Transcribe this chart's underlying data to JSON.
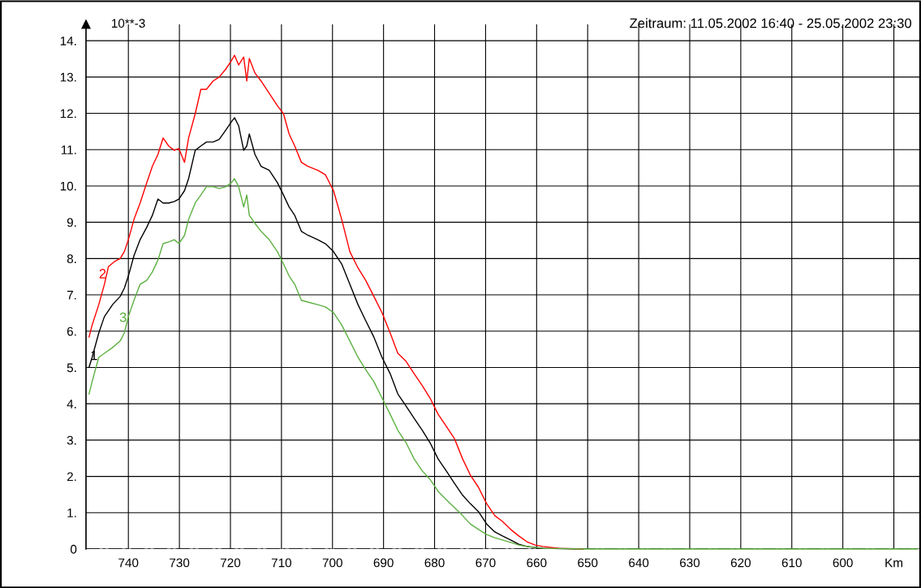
{
  "chart_data": {
    "type": "line",
    "title": "Zeitraum: 11.05.2002 16:40 - 25.05.2002 23:30",
    "ylabel": "10**-3",
    "xlim": [
      748.3,
      585.0
    ],
    "ylim": [
      0,
      14.45
    ],
    "xticks": [
      740,
      730,
      720,
      710,
      700,
      690,
      680,
      670,
      660,
      650,
      640,
      630,
      620,
      610,
      600,
      {
        "value": 590,
        "label": "Km"
      }
    ],
    "yticks": [
      {
        "value": 0,
        "label": "0"
      },
      {
        "value": 1,
        "label": "1."
      },
      {
        "value": 2,
        "label": "2."
      },
      {
        "value": 3,
        "label": "3."
      },
      {
        "value": 4,
        "label": "4."
      },
      {
        "value": 5,
        "label": "5."
      },
      {
        "value": 6,
        "label": "6."
      },
      {
        "value": 7,
        "label": "7."
      },
      {
        "value": 8,
        "label": "8."
      },
      {
        "value": 9,
        "label": "9."
      },
      {
        "value": 10,
        "label": "10."
      },
      {
        "value": 11,
        "label": "11."
      },
      {
        "value": 12,
        "label": "12."
      },
      {
        "value": 13,
        "label": "13."
      },
      {
        "value": 14,
        "label": "14."
      }
    ],
    "grid": true,
    "legend": false,
    "marker": "none",
    "line_style": "solid",
    "ref_lines": [
      {
        "axis": "y",
        "value": 0,
        "label": null,
        "color": "#000000",
        "line_style": "dashed"
      }
    ],
    "annotations": [
      {
        "text": "1",
        "x": 747.4,
        "y": 5.3
      },
      {
        "text": "2",
        "x": 743.5,
        "y": 7.8
      },
      {
        "text": "3",
        "x": 739.5,
        "y": 6.6
      }
    ],
    "series": [
      {
        "color": "#000000",
        "x": [
          747.7,
          747.1,
          745.8,
          744.7,
          743.1,
          741.6,
          740.8,
          740,
          738.9,
          737.7,
          736.4,
          735.3,
          734.2,
          733.2,
          732.1,
          731.0,
          730.1,
          729.0,
          728.2,
          726.9,
          725.8,
          724.7,
          723.4,
          722.2,
          720.9,
          719.8,
          719.2,
          718.4,
          717.4,
          716.8,
          716.3,
          715.2,
          714.0,
          712.4,
          710.8,
          709.6,
          708.5,
          707.4,
          706.1,
          704.8,
          702.9,
          701.4,
          699.8,
          698.2,
          696.6,
          695.0,
          693.5,
          691.9,
          690.3,
          688.7,
          687.2,
          685.6,
          684.0,
          682.4,
          680.9,
          679.3,
          677.7,
          676.1,
          674.5,
          673.0,
          671.4,
          669.8,
          668.2,
          666.7,
          665.1,
          663.5,
          661.9,
          658.8,
          650.9
        ],
        "values": [
          5.01,
          5.28,
          5.95,
          6.4,
          6.73,
          6.96,
          7.18,
          7.52,
          8.08,
          8.52,
          8.86,
          9.19,
          9.64,
          9.53,
          9.53,
          9.57,
          9.64,
          9.87,
          10.2,
          10.98,
          11.1,
          11.21,
          11.21,
          11.28,
          11.54,
          11.77,
          11.88,
          11.66,
          10.98,
          11.1,
          11.43,
          10.87,
          10.54,
          10.43,
          10.09,
          9.75,
          9.42,
          9.19,
          8.75,
          8.64,
          8.52,
          8.41,
          8.19,
          7.85,
          7.29,
          6.73,
          6.29,
          5.84,
          5.28,
          4.83,
          4.27,
          3.94,
          3.6,
          3.27,
          2.93,
          2.48,
          2.15,
          1.81,
          1.48,
          1.25,
          1.03,
          0.69,
          0.47,
          0.36,
          0.25,
          0.13,
          0.07,
          0.02,
          0
        ]
      },
      {
        "color": "#ff0000",
        "x": [
          747.7,
          747.1,
          745.8,
          744.7,
          743.9,
          742.7,
          741.6,
          740.8,
          740,
          738.9,
          737.7,
          736.4,
          735.3,
          734.2,
          733.2,
          732.1,
          731.0,
          730.1,
          729.0,
          728.2,
          726.9,
          725.8,
          724.7,
          723.4,
          722.2,
          720.9,
          719.8,
          719.2,
          718.4,
          717.4,
          716.8,
          716.3,
          715.2,
          714.0,
          712.4,
          710.8,
          709.6,
          708.5,
          707.4,
          706.1,
          704.8,
          702.9,
          701.4,
          699.8,
          698.2,
          696.6,
          695.0,
          693.5,
          691.9,
          690.3,
          688.7,
          687.2,
          685.6,
          684.0,
          682.4,
          680.9,
          679.3,
          677.7,
          676.1,
          674.5,
          673.0,
          671.4,
          669.8,
          668.2,
          666.7,
          665.1,
          663.5,
          661.9,
          660.3,
          658.8,
          655.6,
          650.9
        ],
        "values": [
          5.84,
          6.17,
          6.73,
          7.29,
          7.78,
          7.92,
          8.0,
          8.19,
          8.52,
          9.08,
          9.53,
          10.09,
          10.54,
          10.87,
          11.32,
          11.1,
          10.98,
          11.03,
          10.65,
          11.32,
          11.99,
          12.66,
          12.66,
          12.89,
          13.0,
          13.22,
          13.45,
          13.6,
          13.33,
          13.55,
          12.89,
          13.51,
          13.11,
          12.89,
          12.55,
          12.21,
          11.99,
          11.43,
          11.1,
          10.65,
          10.54,
          10.43,
          10.31,
          9.87,
          9.08,
          8.19,
          7.74,
          7.4,
          6.96,
          6.51,
          5.95,
          5.39,
          5.17,
          4.83,
          4.5,
          4.16,
          3.71,
          3.38,
          3.04,
          2.48,
          2.04,
          1.7,
          1.25,
          0.92,
          0.76,
          0.54,
          0.36,
          0.2,
          0.11,
          0.07,
          0.02,
          0
        ]
      },
      {
        "color": "#5cb040",
        "x": [
          747.7,
          747.1,
          745.8,
          744.7,
          743.1,
          741.6,
          740.8,
          740,
          738.9,
          737.7,
          736.4,
          735.3,
          734.2,
          733.2,
          732.1,
          731.0,
          730.1,
          729.0,
          728.2,
          726.9,
          725.8,
          724.7,
          723.4,
          722.2,
          720.9,
          719.8,
          719.2,
          718.4,
          717.4,
          716.8,
          716.3,
          715.2,
          714.0,
          712.4,
          710.8,
          709.6,
          708.5,
          707.4,
          706.1,
          704.8,
          702.9,
          701.4,
          699.8,
          698.2,
          696.6,
          695.0,
          693.5,
          691.9,
          690.3,
          688.7,
          687.2,
          685.6,
          684.0,
          682.4,
          680.9,
          679.3,
          677.7,
          676.1,
          674.5,
          673.0,
          671.4,
          669.8,
          668.2,
          666.7,
          665.1,
          663.5,
          661.9,
          658.8,
          650.9,
          585.4
        ],
        "values": [
          4.27,
          4.61,
          5.28,
          5.39,
          5.55,
          5.73,
          5.95,
          6.4,
          6.85,
          7.29,
          7.4,
          7.63,
          7.96,
          8.41,
          8.46,
          8.52,
          8.41,
          8.64,
          9.08,
          9.53,
          9.75,
          9.98,
          9.98,
          9.93,
          9.98,
          10.09,
          10.2,
          9.98,
          9.42,
          9.75,
          9.19,
          8.97,
          8.75,
          8.52,
          8.19,
          7.85,
          7.52,
          7.29,
          6.85,
          6.8,
          6.73,
          6.67,
          6.51,
          6.17,
          5.73,
          5.28,
          4.94,
          4.61,
          4.16,
          3.71,
          3.27,
          2.93,
          2.48,
          2.15,
          1.92,
          1.59,
          1.36,
          1.14,
          0.92,
          0.69,
          0.54,
          0.4,
          0.31,
          0.25,
          0.18,
          0.11,
          0.07,
          0.02,
          0,
          0
        ]
      }
    ]
  }
}
